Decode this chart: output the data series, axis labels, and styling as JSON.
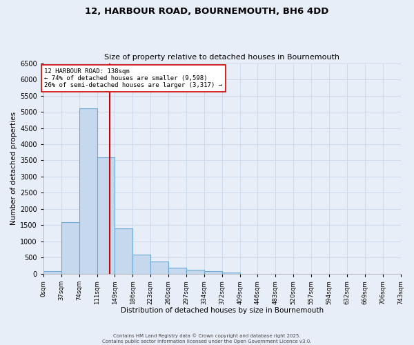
{
  "title_line1": "12, HARBOUR ROAD, BOURNEMOUTH, BH6 4DD",
  "title_line2": "Size of property relative to detached houses in Bournemouth",
  "xlabel": "Distribution of detached houses by size in Bournemouth",
  "ylabel": "Number of detached properties",
  "bin_edges": [
    0,
    37,
    74,
    111,
    148,
    185,
    222,
    259,
    296,
    333,
    370,
    407,
    444,
    481,
    518,
    555,
    592,
    629,
    666,
    703,
    740
  ],
  "bin_labels": [
    "0sqm",
    "37sqm",
    "74sqm",
    "111sqm",
    "149sqm",
    "186sqm",
    "223sqm",
    "260sqm",
    "297sqm",
    "334sqm",
    "372sqm",
    "409sqm",
    "446sqm",
    "483sqm",
    "520sqm",
    "557sqm",
    "594sqm",
    "632sqm",
    "669sqm",
    "706sqm",
    "743sqm"
  ],
  "bar_heights": [
    90,
    1600,
    5100,
    3600,
    1400,
    600,
    390,
    200,
    130,
    90,
    50,
    0,
    0,
    0,
    0,
    0,
    0,
    0,
    0,
    0
  ],
  "bar_color": "#c5d8ee",
  "bar_edge_color": "#6aaad4",
  "property_size": 138,
  "vline_color": "#cc0000",
  "ylim": [
    0,
    6500
  ],
  "yticks": [
    0,
    500,
    1000,
    1500,
    2000,
    2500,
    3000,
    3500,
    4000,
    4500,
    5000,
    5500,
    6000,
    6500
  ],
  "annotation_text": "12 HARBOUR ROAD: 138sqm\n← 74% of detached houses are smaller (9,598)\n26% of semi-detached houses are larger (3,317) →",
  "annotation_box_color": "#ffffff",
  "annotation_box_edge": "#cc0000",
  "grid_color": "#c8d8e8",
  "bg_color": "#e8eef8",
  "footer_line1": "Contains HM Land Registry data © Crown copyright and database right 2025.",
  "footer_line2": "Contains public sector information licensed under the Open Government Licence v3.0."
}
